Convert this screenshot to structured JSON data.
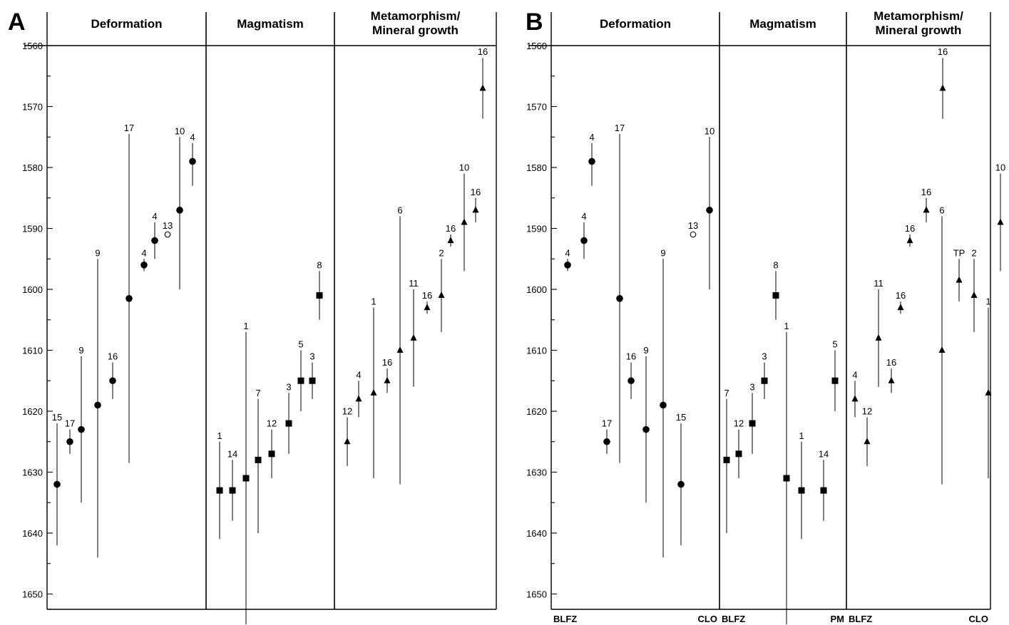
{
  "chart_data": [
    {
      "type": "range-scatter",
      "panel_label": "A",
      "yaxis": {
        "ylim": [
          1655,
          1560
        ],
        "ticks": [
          1560,
          1570,
          1580,
          1590,
          1600,
          1610,
          1620,
          1630,
          1640,
          1650
        ],
        "minor_step": 5
      },
      "sections": [
        {
          "header": [
            "Deformation"
          ],
          "points": [
            {
              "label": "15",
              "value": 1632,
              "min": 1622,
              "max": 1642,
              "marker": "circle"
            },
            {
              "label": "17",
              "value": 1625,
              "min": 1623,
              "max": 1627,
              "marker": "circle"
            },
            {
              "label": "9",
              "value": 1623,
              "min": 1611,
              "max": 1635,
              "marker": "circle"
            },
            {
              "label": "9",
              "value": 1619,
              "min": 1595,
              "max": 1644,
              "marker": "circle"
            },
            {
              "label": "16",
              "value": 1615,
              "min": 1612,
              "max": 1618,
              "marker": "circle"
            },
            {
              "label": "17",
              "value": 1601.5,
              "min": 1574.5,
              "max": 1628.5,
              "marker": "circle"
            },
            {
              "label": "4",
              "value": 1596,
              "min": 1595,
              "max": 1597,
              "marker": "circle"
            },
            {
              "label": "4",
              "value": 1592,
              "min": 1589,
              "max": 1595,
              "marker": "circle"
            },
            {
              "label": "13",
              "value": 1591,
              "min": 1591,
              "max": 1591,
              "marker": "open-circle"
            },
            {
              "label": "10",
              "value": 1587,
              "min": 1575,
              "max": 1600,
              "marker": "circle"
            },
            {
              "label": "4",
              "value": 1579,
              "min": 1576,
              "max": 1583,
              "marker": "circle"
            }
          ]
        },
        {
          "header": [
            "Magmatism"
          ],
          "points": [
            {
              "label": "1",
              "value": 1633,
              "min": 1625,
              "max": 1641,
              "marker": "square"
            },
            {
              "label": "14",
              "value": 1633,
              "min": 1628,
              "max": 1638,
              "marker": "square"
            },
            {
              "label": "1",
              "value": 1631,
              "min": 1607,
              "max": 1655,
              "marker": "square"
            },
            {
              "label": "7",
              "value": 1628,
              "min": 1618,
              "max": 1640,
              "marker": "square"
            },
            {
              "label": "12",
              "value": 1627,
              "min": 1623,
              "max": 1631,
              "marker": "square"
            },
            {
              "label": "3",
              "value": 1622,
              "min": 1617,
              "max": 1627,
              "marker": "square"
            },
            {
              "label": "5",
              "value": 1615,
              "min": 1610,
              "max": 1620,
              "marker": "square"
            },
            {
              "label": "3",
              "value": 1615,
              "min": 1612,
              "max": 1618,
              "marker": "square"
            },
            {
              "label": "8",
              "value": 1601,
              "min": 1597,
              "max": 1605,
              "marker": "square"
            }
          ]
        },
        {
          "header": [
            "Metamorphism/",
            "Mineral growth"
          ],
          "points": [
            {
              "label": "12",
              "value": 1625,
              "min": 1621,
              "max": 1629,
              "marker": "triangle"
            },
            {
              "label": "4",
              "value": 1618,
              "min": 1615,
              "max": 1621,
              "marker": "triangle"
            },
            {
              "label": "1",
              "value": 1617,
              "min": 1603,
              "max": 1631,
              "marker": "triangle"
            },
            {
              "label": "16",
              "value": 1615,
              "min": 1613,
              "max": 1617,
              "marker": "triangle"
            },
            {
              "label": "6",
              "value": 1610,
              "min": 1588,
              "max": 1632,
              "marker": "triangle"
            },
            {
              "label": "11",
              "value": 1608,
              "min": 1600,
              "max": 1616,
              "marker": "triangle"
            },
            {
              "label": "16",
              "value": 1603,
              "min": 1602,
              "max": 1604,
              "marker": "triangle"
            },
            {
              "label": "2",
              "value": 1601,
              "min": 1595,
              "max": 1607,
              "marker": "triangle"
            },
            {
              "label": "16",
              "value": 1592,
              "min": 1591,
              "max": 1593,
              "marker": "triangle"
            },
            {
              "label": "10",
              "value": 1589,
              "min": 1581,
              "max": 1597,
              "marker": "triangle"
            },
            {
              "label": "16",
              "value": 1587,
              "min": 1585,
              "max": 1589,
              "marker": "triangle"
            },
            {
              "label": "16",
              "value": 1567,
              "min": 1562,
              "max": 1572,
              "marker": "triangle"
            }
          ]
        }
      ]
    },
    {
      "type": "range-scatter",
      "panel_label": "B",
      "yaxis": {
        "ylim": [
          1655,
          1560
        ],
        "ticks": [
          1560,
          1570,
          1580,
          1590,
          1600,
          1610,
          1620,
          1630,
          1640,
          1650
        ],
        "minor_step": 5
      },
      "sections": [
        {
          "header": [
            "Deformation"
          ],
          "x_left_label": "BLFZ",
          "x_right_label": "CLO",
          "points": [
            {
              "label": "4",
              "value": 1596,
              "min": 1595,
              "max": 1597,
              "marker": "circle"
            },
            {
              "label": "4",
              "value": 1592,
              "min": 1589,
              "max": 1595,
              "marker": "circle"
            },
            {
              "label": "4",
              "value": 1579,
              "min": 1576,
              "max": 1583,
              "marker": "circle"
            },
            {
              "label": "17",
              "value": 1625,
              "min": 1623,
              "max": 1627,
              "marker": "circle"
            },
            {
              "label": "17",
              "value": 1601.5,
              "min": 1574.5,
              "max": 1628.5,
              "marker": "circle"
            },
            {
              "label": "16",
              "value": 1615,
              "min": 1612,
              "max": 1618,
              "marker": "circle"
            },
            {
              "label": "9",
              "value": 1623,
              "min": 1611,
              "max": 1635,
              "marker": "circle"
            },
            {
              "label": "9",
              "value": 1619,
              "min": 1595,
              "max": 1644,
              "marker": "circle"
            },
            {
              "label": "15",
              "value": 1632,
              "min": 1622,
              "max": 1642,
              "marker": "circle"
            },
            {
              "label": "13",
              "value": 1591,
              "min": 1591,
              "max": 1591,
              "marker": "open-circle"
            },
            {
              "label": "10",
              "value": 1587,
              "min": 1575,
              "max": 1600,
              "marker": "circle"
            }
          ]
        },
        {
          "header": [
            "Magmatism"
          ],
          "x_left_label": "BLFZ",
          "x_right_label": "PM",
          "points": [
            {
              "label": "7",
              "value": 1628,
              "min": 1618,
              "max": 1640,
              "marker": "square"
            },
            {
              "label": "12",
              "value": 1627,
              "min": 1623,
              "max": 1631,
              "marker": "square"
            },
            {
              "label": "3",
              "value": 1622,
              "min": 1617,
              "max": 1627,
              "marker": "square"
            },
            {
              "label": "3",
              "value": 1615,
              "min": 1612,
              "max": 1618,
              "marker": "square"
            },
            {
              "label": "8",
              "value": 1601,
              "min": 1597,
              "max": 1605,
              "marker": "square"
            },
            {
              "label": "1",
              "value": 1631,
              "min": 1607,
              "max": 1655,
              "marker": "square"
            },
            {
              "label": "1",
              "value": 1633,
              "min": 1625,
              "max": 1641,
              "marker": "square"
            },
            {
              "label": "14",
              "value": 1633,
              "min": 1628,
              "max": 1638,
              "marker": "square"
            },
            {
              "label": "5",
              "value": 1615,
              "min": 1610,
              "max": 1620,
              "marker": "square"
            }
          ]
        },
        {
          "header": [
            "Metamorphism/",
            "Mineral growth"
          ],
          "x_left_label": "BLFZ",
          "x_right_label": "CLO",
          "points": [
            {
              "label": "4",
              "value": 1618,
              "min": 1615,
              "max": 1621,
              "marker": "triangle"
            },
            {
              "label": "12",
              "value": 1625,
              "min": 1621,
              "max": 1629,
              "marker": "triangle"
            },
            {
              "label": "11",
              "value": 1608,
              "min": 1600,
              "max": 1616,
              "marker": "triangle"
            },
            {
              "label": "16",
              "value": 1615,
              "min": 1613,
              "max": 1617,
              "marker": "triangle"
            },
            {
              "label": "16",
              "value": 1603,
              "min": 1602,
              "max": 1604,
              "marker": "triangle"
            },
            {
              "label": "16",
              "value": 1592,
              "min": 1591,
              "max": 1593,
              "marker": "triangle"
            },
            {
              "label": "16",
              "value": 1587,
              "min": 1585,
              "max": 1589,
              "marker": "triangle"
            },
            {
              "label": "16",
              "value": 1567,
              "min": 1562,
              "max": 1572,
              "marker": "triangle"
            },
            {
              "label": "6",
              "value": 1610,
              "min": 1588,
              "max": 1632,
              "marker": "triangle"
            },
            {
              "label": "TP",
              "value": 1598.5,
              "min": 1595,
              "max": 1602,
              "marker": "triangle"
            },
            {
              "label": "2",
              "value": 1601,
              "min": 1595,
              "max": 1607,
              "marker": "triangle"
            },
            {
              "label": "1",
              "value": 1617,
              "min": 1603,
              "max": 1631,
              "marker": "triangle"
            },
            {
              "label": "10",
              "value": 1589,
              "min": 1581,
              "max": 1597,
              "marker": "triangle"
            }
          ]
        }
      ]
    }
  ]
}
